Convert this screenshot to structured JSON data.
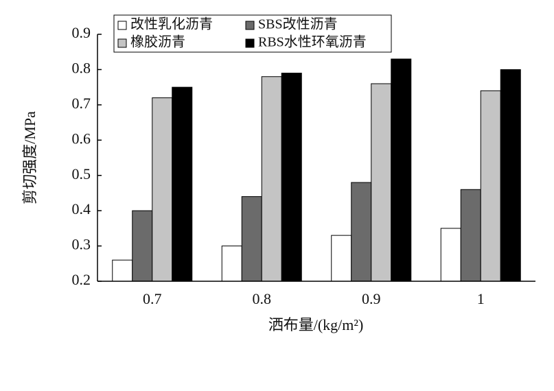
{
  "chart_data": {
    "type": "bar",
    "categories": [
      "0.7",
      "0.8",
      "0.9",
      "1"
    ],
    "series": [
      {
        "name": "改性乳化沥青",
        "color": "#ffffff",
        "values": [
          0.26,
          0.3,
          0.33,
          0.35
        ]
      },
      {
        "name": "SBS改性沥青",
        "color": "#6b6b6b",
        "values": [
          0.4,
          0.44,
          0.48,
          0.46
        ]
      },
      {
        "name": "橡胶沥青",
        "color": "#c4c4c4",
        "values": [
          0.72,
          0.78,
          0.76,
          0.74
        ]
      },
      {
        "name": "RBS水性环氧沥青",
        "color": "#000000",
        "values": [
          0.75,
          0.79,
          0.83,
          0.8
        ]
      }
    ],
    "x_label": "洒布量/(kg/m²)",
    "y_label": "剪切强度/MPa",
    "ylim": [
      0.2,
      0.9
    ],
    "yticks": [
      0.2,
      0.3,
      0.4,
      0.5,
      0.6,
      0.7,
      0.8,
      0.9
    ],
    "legend": "top-left"
  }
}
